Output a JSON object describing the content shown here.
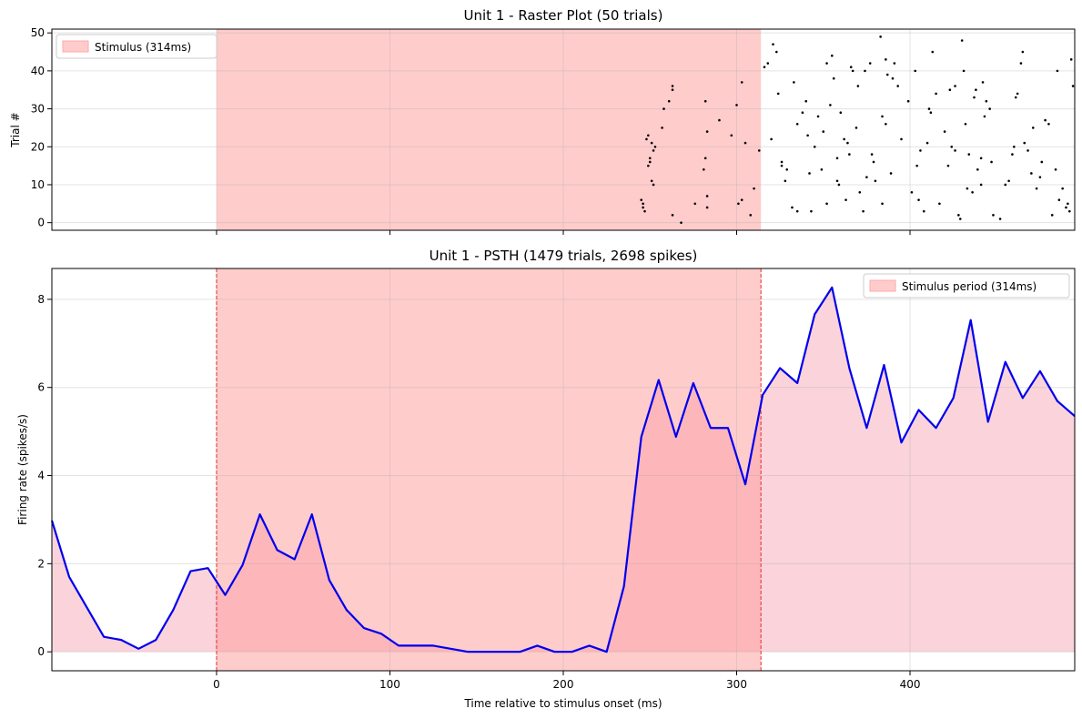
{
  "chart_data": [
    {
      "type": "scatter",
      "title": "Unit 1 - Raster Plot (50 trials)",
      "xlabel": "",
      "ylabel": "Trial #",
      "xlim": [
        -95,
        495
      ],
      "ylim": [
        -2,
        51
      ],
      "xticks": [
        0,
        100,
        200,
        300,
        400
      ],
      "yticks": [
        0,
        10,
        20,
        30,
        40,
        50
      ],
      "ytick_labels": [
        "0",
        "10",
        "20",
        "30",
        "40",
        "50"
      ],
      "grid": true,
      "legend_position": "top-left",
      "legend": [
        {
          "label": "Stimulus (314ms)",
          "color": "#ffcccc"
        }
      ],
      "stimulus": {
        "start": 0,
        "end": 314,
        "color": "#ffcccc"
      },
      "marker_color": "#000000",
      "points": [
        [
          245,
          6
        ],
        [
          246,
          5
        ],
        [
          246,
          4
        ],
        [
          247,
          3
        ],
        [
          248,
          22
        ],
        [
          249,
          15
        ],
        [
          249,
          23
        ],
        [
          250,
          16
        ],
        [
          250,
          17
        ],
        [
          251,
          21
        ],
        [
          251,
          11
        ],
        [
          252,
          10
        ],
        [
          252,
          19
        ],
        [
          253,
          20
        ],
        [
          257,
          25
        ],
        [
          258,
          30
        ],
        [
          261,
          32
        ],
        [
          263,
          2
        ],
        [
          263,
          35
        ],
        [
          263,
          36
        ],
        [
          268,
          0
        ],
        [
          276,
          5
        ],
        [
          281,
          14
        ],
        [
          282,
          17
        ],
        [
          282,
          32
        ],
        [
          283,
          24
        ],
        [
          283,
          7
        ],
        [
          283,
          4
        ],
        [
          290,
          27
        ],
        [
          297,
          23
        ],
        [
          300,
          31
        ],
        [
          301,
          5
        ],
        [
          303,
          6
        ],
        [
          303,
          37
        ],
        [
          305,
          21
        ],
        [
          308,
          2
        ],
        [
          310,
          9
        ],
        [
          313,
          19
        ],
        [
          316,
          41
        ],
        [
          318,
          42
        ],
        [
          320,
          22
        ],
        [
          321,
          47
        ],
        [
          323,
          45
        ],
        [
          324,
          34
        ],
        [
          326,
          16
        ],
        [
          326,
          15
        ],
        [
          328,
          11
        ],
        [
          329,
          14
        ],
        [
          332,
          4
        ],
        [
          333,
          37
        ],
        [
          335,
          3
        ],
        [
          335,
          26
        ],
        [
          338,
          29
        ],
        [
          340,
          32
        ],
        [
          341,
          23
        ],
        [
          342,
          13
        ],
        [
          343,
          3
        ],
        [
          345,
          20
        ],
        [
          347,
          28
        ],
        [
          349,
          14
        ],
        [
          350,
          24
        ],
        [
          352,
          42
        ],
        [
          352,
          5
        ],
        [
          354,
          31
        ],
        [
          355,
          44
        ],
        [
          356,
          38
        ],
        [
          358,
          11
        ],
        [
          358,
          17
        ],
        [
          359,
          10
        ],
        [
          360,
          29
        ],
        [
          362,
          22
        ],
        [
          363,
          6
        ],
        [
          364,
          21
        ],
        [
          365,
          18
        ],
        [
          366,
          41
        ],
        [
          367,
          40
        ],
        [
          369,
          25
        ],
        [
          370,
          36
        ],
        [
          371,
          8
        ],
        [
          373,
          3
        ],
        [
          374,
          40
        ],
        [
          375,
          12
        ],
        [
          377,
          42
        ],
        [
          378,
          18
        ],
        [
          379,
          16
        ],
        [
          380,
          11
        ],
        [
          383,
          49
        ],
        [
          384,
          5
        ],
        [
          384,
          28
        ],
        [
          386,
          26
        ],
        [
          386,
          43
        ],
        [
          387,
          39
        ],
        [
          389,
          13
        ],
        [
          390,
          38
        ],
        [
          391,
          42
        ],
        [
          393,
          36
        ],
        [
          395,
          22
        ],
        [
          399,
          32
        ],
        [
          401,
          8
        ],
        [
          403,
          40
        ],
        [
          404,
          15
        ],
        [
          405,
          6
        ],
        [
          406,
          19
        ],
        [
          408,
          3
        ],
        [
          410,
          21
        ],
        [
          411,
          30
        ],
        [
          412,
          29
        ],
        [
          413,
          45
        ],
        [
          415,
          34
        ],
        [
          417,
          5
        ],
        [
          420,
          24
        ],
        [
          422,
          15
        ],
        [
          423,
          35
        ],
        [
          424,
          20
        ],
        [
          426,
          36
        ],
        [
          426,
          19
        ],
        [
          428,
          2
        ],
        [
          429,
          1
        ],
        [
          430,
          48
        ],
        [
          431,
          40
        ],
        [
          432,
          26
        ],
        [
          433,
          9
        ],
        [
          434,
          18
        ],
        [
          436,
          8
        ],
        [
          437,
          33
        ],
        [
          438,
          35
        ],
        [
          439,
          14
        ],
        [
          441,
          10
        ],
        [
          441,
          17
        ],
        [
          442,
          37
        ],
        [
          443,
          28
        ],
        [
          444,
          32
        ],
        [
          446,
          30
        ],
        [
          447,
          16
        ],
        [
          448,
          2
        ],
        [
          452,
          1
        ],
        [
          455,
          10
        ],
        [
          457,
          11
        ],
        [
          459,
          18
        ],
        [
          460,
          20
        ],
        [
          461,
          33
        ],
        [
          462,
          34
        ],
        [
          464,
          42
        ],
        [
          465,
          45
        ],
        [
          466,
          21
        ],
        [
          468,
          19
        ],
        [
          470,
          13
        ],
        [
          471,
          25
        ],
        [
          473,
          9
        ],
        [
          475,
          12
        ],
        [
          476,
          16
        ],
        [
          478,
          27
        ],
        [
          480,
          26
        ],
        [
          482,
          2
        ],
        [
          484,
          14
        ],
        [
          485,
          40
        ],
        [
          486,
          6
        ],
        [
          488,
          9
        ],
        [
          490,
          4
        ],
        [
          491,
          5
        ],
        [
          492,
          3
        ],
        [
          493,
          43
        ],
        [
          494,
          36
        ]
      ]
    },
    {
      "type": "area",
      "title": "Unit 1 - PSTH (1479 trials, 2698 spikes)",
      "xlabel": "Time relative to stimulus onset (ms)",
      "ylabel": "Firing rate (spikes/s)",
      "xlim": [
        -95,
        495
      ],
      "ylim": [
        -0.43,
        8.7
      ],
      "xticks": [
        0,
        100,
        200,
        300,
        400
      ],
      "xtick_labels": [
        "0",
        "100",
        "200",
        "300",
        "400"
      ],
      "yticks": [
        0,
        2,
        4,
        6,
        8
      ],
      "ytick_labels": [
        "0",
        "2",
        "4",
        "6",
        "8"
      ],
      "grid": true,
      "legend_position": "top-right",
      "legend": [
        {
          "label": "Stimulus period (314ms)",
          "color": "#ffcccc"
        }
      ],
      "stimulus": {
        "start": 0,
        "end": 314,
        "color": "#ffcccc",
        "line_color": "#e03030"
      },
      "line_color": "#0000ee",
      "fill_color": "#f5a8b8",
      "series": [
        {
          "x": [
            -95,
            -85,
            -75,
            -65,
            -55,
            -45,
            -35,
            -25,
            -15,
            -5,
            5,
            15,
            25,
            35,
            45,
            55,
            65,
            75,
            85,
            95,
            105,
            115,
            125,
            135,
            145,
            155,
            165,
            175,
            185,
            195,
            205,
            215,
            225,
            235,
            245,
            255,
            265,
            275,
            285,
            295,
            305,
            315,
            325,
            335,
            345,
            355,
            365,
            375,
            385,
            395,
            405,
            415,
            425,
            435,
            445,
            455,
            465,
            475,
            485,
            495
          ],
          "values": [
            2.98,
            1.7,
            1.02,
            0.34,
            0.27,
            0.07,
            0.27,
            0.95,
            1.83,
            1.9,
            1.29,
            1.97,
            3.12,
            2.31,
            2.1,
            3.12,
            1.63,
            0.95,
            0.54,
            0.41,
            0.14,
            0.14,
            0.14,
            0.07,
            0.0,
            0.0,
            0.0,
            0.0,
            0.14,
            0.0,
            0.0,
            0.14,
            0.0,
            1.49,
            4.88,
            6.17,
            4.88,
            6.1,
            5.08,
            5.08,
            3.8,
            5.83,
            6.44,
            6.1,
            7.66,
            8.27,
            6.44,
            5.08,
            6.51,
            4.75,
            5.49,
            5.08,
            5.76,
            7.53,
            5.22,
            6.58,
            5.76,
            6.37,
            5.69,
            5.35
          ]
        }
      ]
    }
  ]
}
